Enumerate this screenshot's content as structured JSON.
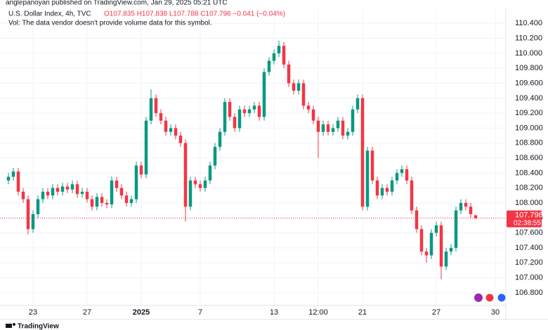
{
  "chart_data": {
    "type": "candlestick",
    "published": "anglepanoyan published on TradingView.com, Jan 29, 2025 05:21 UTC",
    "symbol": "U.S. Dollar Index, 4h, TVC",
    "ohlc_legend": "O107.835 H107.838 L107.788 C107.796 −0.041 (−0.04%)",
    "volume_note": "Vol: The data vendor doesn't provide volume data for this symbol.",
    "last_price_label": "107.796",
    "countdown": "02:38:55",
    "brand": "TradingView",
    "up_color": "#089981",
    "down_color": "#f23645",
    "grid": true,
    "categories": [
      null,
      null,
      null,
      null,
      null,
      "23",
      null,
      null,
      null,
      null,
      null,
      null,
      null,
      null,
      null,
      null,
      "27",
      null,
      null,
      null,
      null,
      null,
      null,
      null,
      null,
      null,
      null,
      "2025",
      null,
      null,
      null,
      null,
      null,
      null,
      null,
      null,
      null,
      null,
      null,
      "7",
      null,
      null,
      null,
      null,
      null,
      null,
      null,
      null,
      null,
      null,
      null,
      null,
      null,
      null,
      "13",
      null,
      null,
      null,
      null,
      null,
      null,
      null,
      null,
      "12:00",
      null,
      null,
      null,
      null,
      null,
      null,
      null,
      null,
      "21",
      null,
      null,
      null,
      null,
      null,
      null,
      null,
      null,
      null,
      null,
      null,
      null,
      null,
      null,
      "27",
      null,
      null,
      null,
      null,
      null,
      null,
      null,
      null,
      null,
      null,
      null,
      "30"
    ],
    "open": [
      108.3,
      108.35,
      108.42,
      108.15,
      108.05,
      107.65,
      107.85,
      108.05,
      108.15,
      108.1,
      108.2,
      108.15,
      108.22,
      108.18,
      108.25,
      108.12,
      108.15,
      108.05,
      107.95,
      108.08,
      108.0,
      107.98,
      108.3,
      108.2,
      108.1,
      108.0,
      108.05,
      108.5,
      108.38,
      109.1,
      109.4,
      109.2,
      109.1,
      108.95,
      109.0,
      108.9,
      108.8,
      107.95,
      108.3,
      108.25,
      108.2,
      108.3,
      108.5,
      108.75,
      108.95,
      109.35,
      109.15,
      109.0,
      109.25,
      109.2,
      109.25,
      109.3,
      109.15,
      109.75,
      109.9,
      110.0,
      110.1,
      109.85,
      109.6,
      109.5,
      109.6,
      109.3,
      109.25,
      109.1,
      108.95,
      109.05,
      108.95,
      109.0,
      109.1,
      108.9,
      108.95,
      109.25,
      109.4,
      107.95,
      108.7,
      108.3,
      108.1,
      108.2,
      108.15,
      108.3,
      108.4,
      108.45,
      108.3,
      107.9,
      107.65,
      107.35,
      107.3,
      107.6,
      107.7,
      107.15,
      107.35,
      107.4,
      107.9,
      108.0,
      107.95,
      107.835,
      null,
      null,
      null,
      null
    ],
    "high": [
      108.4,
      108.47,
      108.47,
      108.2,
      108.1,
      107.9,
      108.1,
      108.2,
      108.2,
      108.25,
      108.25,
      108.27,
      108.27,
      108.3,
      108.3,
      108.2,
      108.2,
      108.1,
      108.13,
      108.13,
      108.05,
      108.35,
      108.35,
      108.25,
      108.15,
      108.1,
      108.55,
      108.55,
      109.15,
      109.52,
      109.45,
      109.25,
      109.15,
      109.05,
      109.05,
      108.95,
      108.85,
      108.35,
      108.35,
      108.3,
      108.35,
      108.55,
      108.8,
      109.0,
      109.4,
      109.4,
      109.2,
      109.3,
      109.3,
      109.3,
      109.35,
      109.35,
      109.8,
      109.95,
      110.05,
      110.17,
      110.15,
      109.9,
      109.65,
      109.65,
      109.65,
      109.35,
      109.3,
      109.15,
      109.1,
      109.1,
      109.05,
      109.15,
      109.15,
      109.0,
      109.3,
      109.45,
      109.45,
      108.75,
      108.75,
      108.35,
      108.25,
      108.25,
      108.35,
      108.45,
      108.5,
      108.5,
      108.35,
      107.95,
      107.7,
      107.4,
      107.65,
      107.75,
      107.75,
      107.4,
      107.45,
      107.95,
      108.05,
      108.05,
      108.0,
      107.838,
      null,
      null,
      null,
      null
    ],
    "low": [
      108.25,
      108.3,
      108.1,
      108.0,
      107.58,
      107.6,
      107.8,
      108.0,
      108.05,
      108.05,
      108.1,
      108.1,
      108.13,
      108.13,
      108.07,
      108.07,
      108.0,
      107.9,
      107.9,
      107.95,
      107.93,
      107.93,
      108.15,
      108.05,
      107.95,
      107.95,
      108.0,
      108.33,
      108.33,
      109.05,
      109.15,
      109.05,
      108.9,
      108.9,
      108.85,
      108.75,
      107.75,
      107.9,
      108.2,
      108.15,
      108.15,
      108.25,
      108.45,
      108.7,
      108.9,
      109.1,
      108.95,
      108.95,
      109.15,
      109.15,
      109.2,
      109.1,
      109.1,
      109.7,
      109.85,
      109.95,
      109.8,
      109.55,
      109.45,
      109.45,
      109.25,
      109.2,
      109.05,
      108.6,
      108.9,
      108.9,
      108.9,
      108.95,
      108.85,
      108.85,
      108.9,
      109.2,
      107.9,
      107.9,
      108.25,
      108.05,
      108.05,
      108.1,
      108.1,
      108.25,
      108.35,
      108.25,
      107.85,
      107.6,
      107.3,
      107.2,
      107.25,
      107.55,
      106.98,
      107.1,
      107.3,
      107.35,
      107.85,
      107.9,
      107.8,
      107.788,
      null,
      null,
      null,
      null
    ],
    "close": [
      108.35,
      108.42,
      108.15,
      108.05,
      107.65,
      107.85,
      108.05,
      108.15,
      108.1,
      108.2,
      108.15,
      108.22,
      108.18,
      108.25,
      108.12,
      108.15,
      108.05,
      107.95,
      108.08,
      108.0,
      107.98,
      108.3,
      108.2,
      108.1,
      108.0,
      108.05,
      108.5,
      108.38,
      109.1,
      109.4,
      109.2,
      109.1,
      108.95,
      109.0,
      108.9,
      108.8,
      107.95,
      108.3,
      108.25,
      108.2,
      108.3,
      108.5,
      108.75,
      108.95,
      109.35,
      109.15,
      109.0,
      109.25,
      109.2,
      109.25,
      109.3,
      109.15,
      109.75,
      109.9,
      110.0,
      110.1,
      109.85,
      109.6,
      109.5,
      109.6,
      109.3,
      109.25,
      109.1,
      108.95,
      109.05,
      108.95,
      109.0,
      109.1,
      108.9,
      108.95,
      109.25,
      109.4,
      107.95,
      108.7,
      108.3,
      108.1,
      108.2,
      108.15,
      108.3,
      108.4,
      108.45,
      108.3,
      107.9,
      107.65,
      107.35,
      107.3,
      107.6,
      107.7,
      107.15,
      107.35,
      107.4,
      107.9,
      108.0,
      107.95,
      107.85,
      107.796,
      null,
      null,
      null,
      null
    ],
    "ylim": [
      106.63,
      110.6
    ],
    "yticks": [
      {
        "value": 106.8,
        "label": "106.800"
      },
      {
        "value": 107.0,
        "label": "107.000"
      },
      {
        "value": 107.2,
        "label": "107.200"
      },
      {
        "value": 107.4,
        "label": "107.400"
      },
      {
        "value": 107.6,
        "label": "107.600"
      },
      {
        "value": 107.8,
        "label": "107.800"
      },
      {
        "value": 108.0,
        "label": "108.000"
      },
      {
        "value": 108.2,
        "label": "108.200"
      },
      {
        "value": 108.4,
        "label": "108.400"
      },
      {
        "value": 108.6,
        "label": "108.600"
      },
      {
        "value": 108.8,
        "label": "108.800"
      },
      {
        "value": 109.0,
        "label": "109.000"
      },
      {
        "value": 109.2,
        "label": "109.200"
      },
      {
        "value": 109.4,
        "label": "109.400"
      },
      {
        "value": 109.6,
        "label": "109.600"
      },
      {
        "value": 109.8,
        "label": "109.800"
      },
      {
        "value": 110.0,
        "label": "110.000"
      },
      {
        "value": 110.2,
        "label": "110.200"
      },
      {
        "value": 110.4,
        "label": "110.400"
      }
    ]
  }
}
